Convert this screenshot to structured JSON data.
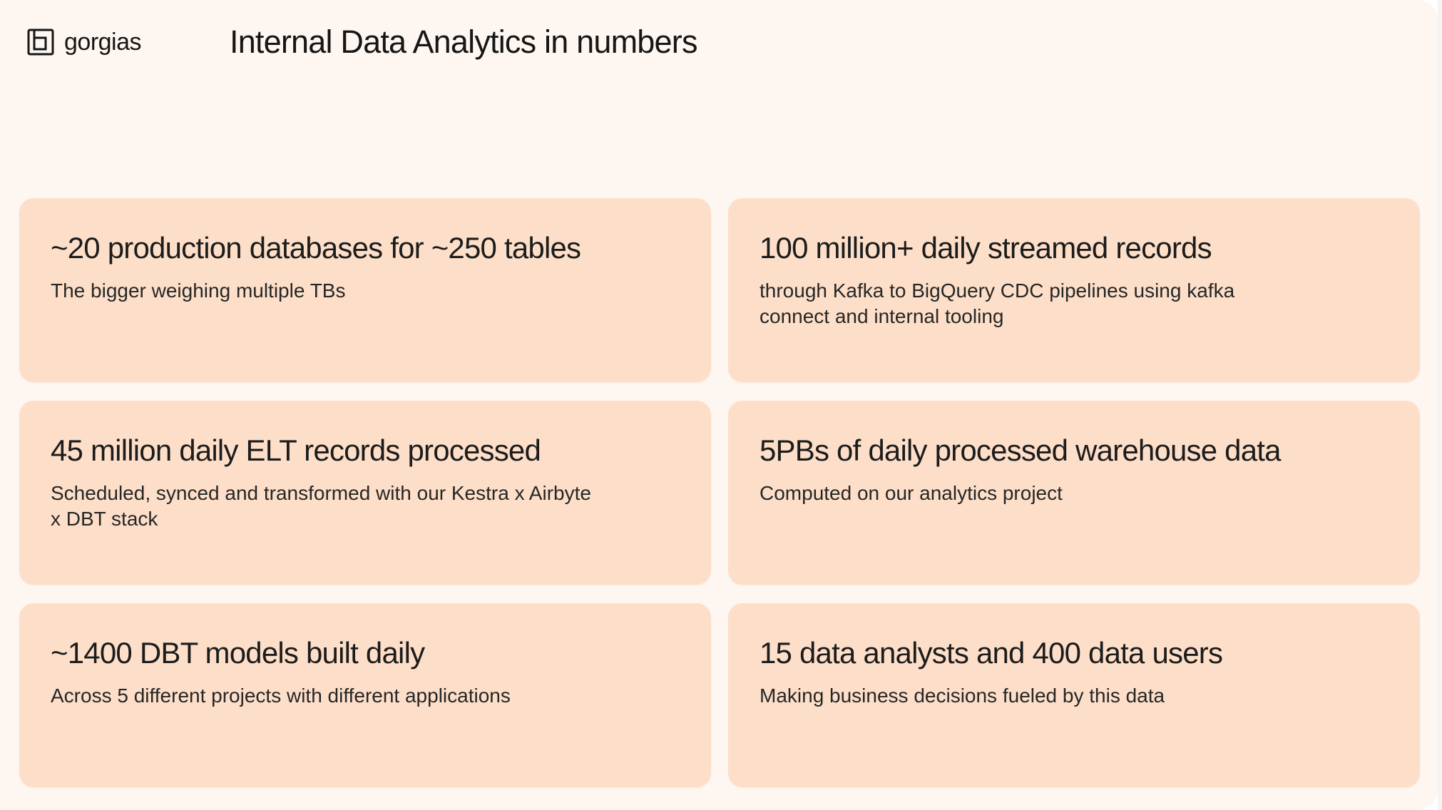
{
  "brand": {
    "logo_text": "gorgias",
    "logo_icon": "gorgias-logo-icon"
  },
  "header": {
    "title": "Internal Data Analytics in numbers"
  },
  "cards": [
    {
      "title": "~20 production databases for ~250 tables",
      "description": "The bigger weighing multiple TBs"
    },
    {
      "title": "100 million+ daily streamed records",
      "description": " through Kafka to BigQuery CDC pipelines using kafka\nconnect and internal tooling"
    },
    {
      "title": "45 million daily ELT records processed",
      "description": "Scheduled, synced and transformed with our Kestra x Airbyte\nx DBT stack"
    },
    {
      "title": "5PBs of daily processed warehouse data",
      "description": "Computed on our analytics project"
    },
    {
      "title": "~1400 DBT models built daily",
      "description": "Across 5 different projects with different applications"
    },
    {
      "title": "15 data analysts and 400 data users",
      "description": "Making business decisions fueled by this data"
    }
  ],
  "colors": {
    "background": "#fef7f1",
    "card": "#fddfc9",
    "text": "#1c1c1c"
  }
}
